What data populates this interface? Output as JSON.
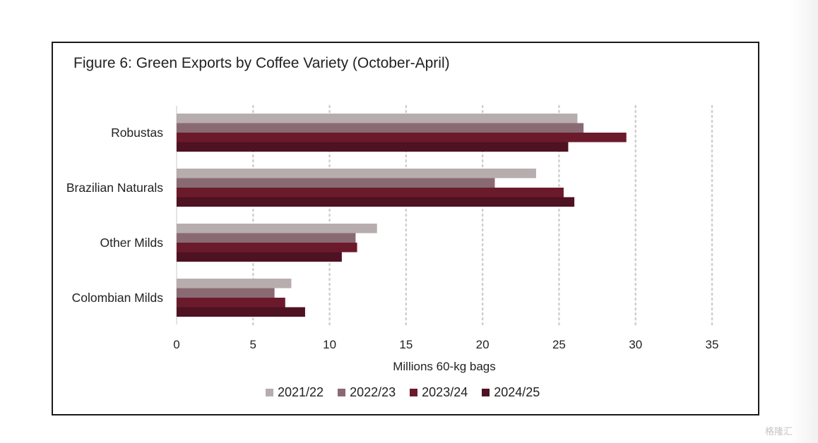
{
  "chart_data": {
    "type": "bar",
    "orientation": "horizontal",
    "title": "Figure 6: Green Exports by Coffee Variety (October-April)",
    "xlabel": "Millions 60-kg bags",
    "ylabel": "",
    "categories": [
      "Robustas",
      "Brazilian Naturals",
      "Other Milds",
      "Colombian Milds"
    ],
    "series": [
      {
        "name": "2021/22",
        "color": "#b7adae",
        "values": [
          26.2,
          23.5,
          13.1,
          7.5
        ]
      },
      {
        "name": "2022/23",
        "color": "#8a6a72",
        "values": [
          26.6,
          20.8,
          11.7,
          6.4
        ]
      },
      {
        "name": "2023/24",
        "color": "#6b1a2c",
        "values": [
          29.4,
          25.3,
          11.8,
          7.1
        ]
      },
      {
        "name": "2024/25",
        "color": "#4e1222",
        "values": [
          25.6,
          26.0,
          10.8,
          8.4
        ]
      }
    ],
    "xlim": [
      0,
      35
    ],
    "xticks": [
      "0",
      "5",
      "10",
      "15",
      "20",
      "25",
      "30",
      "35"
    ],
    "grid": "vertical dotted",
    "legend_position": "bottom"
  },
  "watermark": "格隆汇"
}
